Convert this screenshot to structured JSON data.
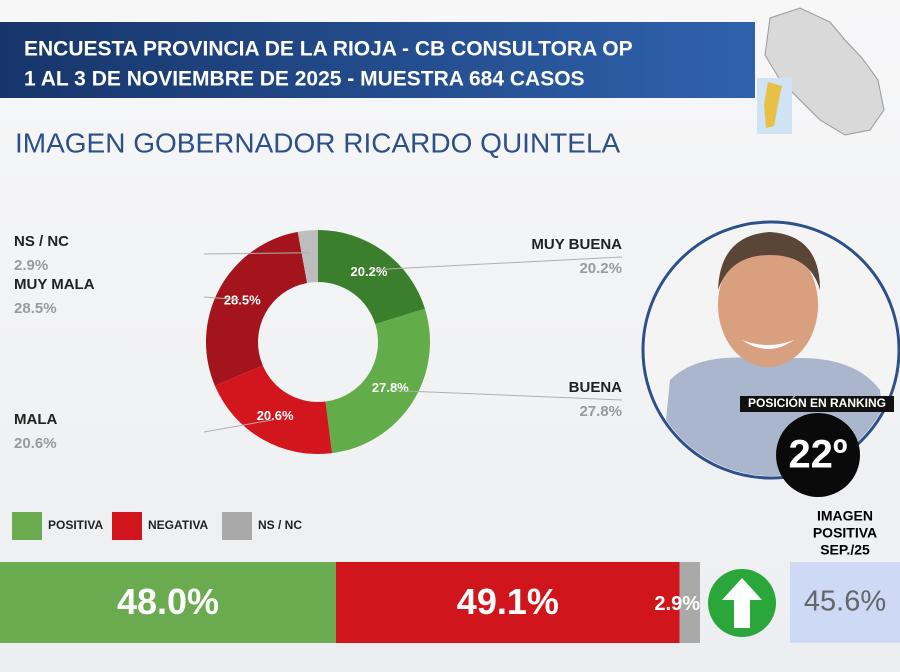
{
  "header": {
    "lines": [
      "ENCUESTA PROVINCIA DE LA RIOJA - CB CONSULTORA OP",
      "1 AL 3 DE NOVIEMBRE DE 2025 - MUESTRA 684 CASOS"
    ]
  },
  "subtitle": "IMAGEN GOBERNADOR  RICARDO QUINTELA",
  "chart_data": [
    {
      "type": "pie",
      "donut": true,
      "categories": [
        "MUY BUENA",
        "BUENA",
        "MALA",
        "MUY MALA",
        "NS / NC"
      ],
      "values": [
        20.2,
        27.8,
        20.6,
        28.5,
        2.9
      ],
      "value_labels": [
        "20.2%",
        "27.8%",
        "20.6%",
        "28.5%",
        "2.9%"
      ],
      "colors": [
        "#3b7f2c",
        "#62ad4a",
        "#d3161d",
        "#a3141c",
        "#bdbdbd"
      ]
    },
    {
      "type": "bar",
      "orientation": "horizontal",
      "stacked": true,
      "xlim": [
        0,
        100
      ],
      "series": [
        {
          "name": "POSITIVA",
          "color": "#6aab4f",
          "values": [
            48.0
          ],
          "value_labels": [
            "48.0%"
          ]
        },
        {
          "name": "NEGATIVA",
          "color": "#d0161c",
          "values": [
            49.1
          ],
          "value_labels": [
            "49.1%"
          ]
        },
        {
          "name": "NS / NC",
          "color": "#a9a9a9",
          "values": [
            2.9
          ],
          "value_labels": [
            "2.9%"
          ]
        }
      ]
    }
  ],
  "ranking": {
    "label": "POSICIÓN EN RANKING",
    "position": "22º"
  },
  "comparison": {
    "title_lines": [
      "IMAGEN",
      "POSITIVA",
      "SEP./25"
    ],
    "value_label": "45.6%"
  }
}
